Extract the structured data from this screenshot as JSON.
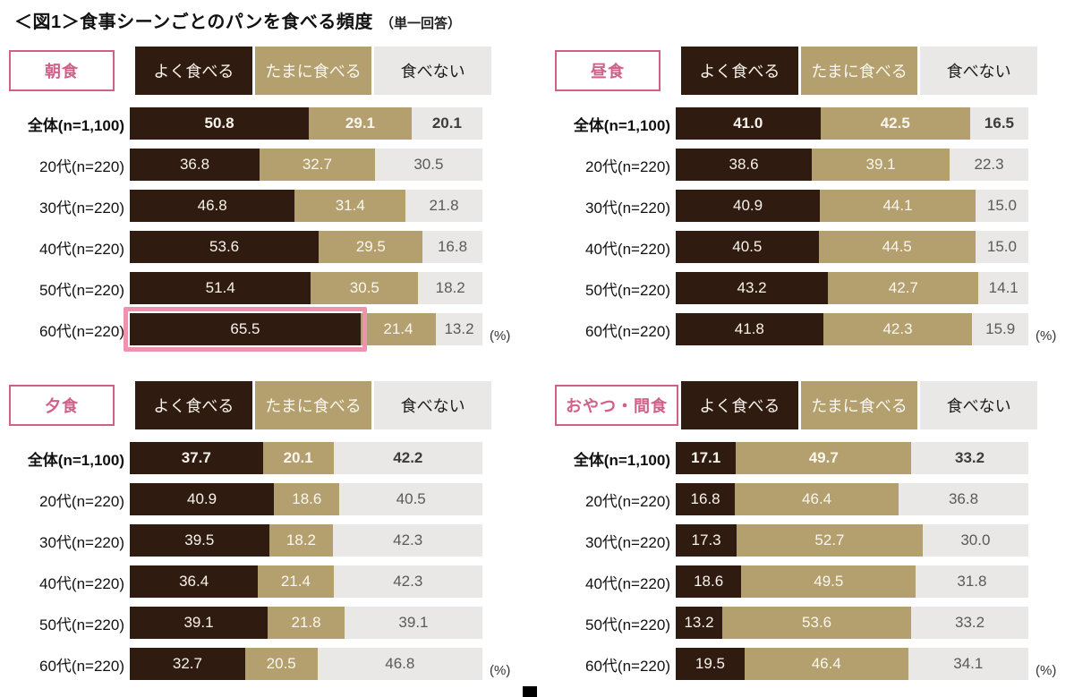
{
  "title": {
    "main": "＜図1＞食事シーンごとのパンを食べる頻度",
    "note": "（単一回答）"
  },
  "legend": [
    "よく食べる",
    "たまに食べる",
    "食べない"
  ],
  "unit_label": "(%)",
  "colors": {
    "often": "#2f1b10",
    "sometimes": "#b3a06e",
    "never": "#e9e8e6",
    "pink": "#cf6189",
    "highlight": "#ee92ae"
  },
  "chart_data": [
    {
      "type": "bar",
      "name": "breakfast",
      "title": "朝食",
      "stacked": true,
      "orientation": "horizontal",
      "unit": "%",
      "xlim": [
        0,
        100
      ],
      "series": [
        "よく食べる",
        "たまに食べる",
        "食べない"
      ],
      "categories": [
        "全体(n=1,100)",
        "20代(n=220)",
        "30代(n=220)",
        "40代(n=220)",
        "50代(n=220)",
        "60代(n=220)"
      ],
      "rows": [
        [
          "50.8",
          "29.1",
          "20.1"
        ],
        [
          "36.8",
          "32.7",
          "30.5"
        ],
        [
          "46.8",
          "31.4",
          "21.8"
        ],
        [
          "53.6",
          "29.5",
          "16.8"
        ],
        [
          "51.4",
          "30.5",
          "18.2"
        ],
        [
          "65.5",
          "21.4",
          "13.2"
        ]
      ],
      "highlight": {
        "row": 5,
        "segment": 0
      }
    },
    {
      "type": "bar",
      "name": "lunch",
      "title": "昼食",
      "stacked": true,
      "orientation": "horizontal",
      "unit": "%",
      "xlim": [
        0,
        100
      ],
      "series": [
        "よく食べる",
        "たまに食べる",
        "食べない"
      ],
      "categories": [
        "全体(n=1,100)",
        "20代(n=220)",
        "30代(n=220)",
        "40代(n=220)",
        "50代(n=220)",
        "60代(n=220)"
      ],
      "rows": [
        [
          "41.0",
          "42.5",
          "16.5"
        ],
        [
          "38.6",
          "39.1",
          "22.3"
        ],
        [
          "40.9",
          "44.1",
          "15.0"
        ],
        [
          "40.5",
          "44.5",
          "15.0"
        ],
        [
          "43.2",
          "42.7",
          "14.1"
        ],
        [
          "41.8",
          "42.3",
          "15.9"
        ]
      ]
    },
    {
      "type": "bar",
      "name": "dinner",
      "title": "夕食",
      "stacked": true,
      "orientation": "horizontal",
      "unit": "%",
      "xlim": [
        0,
        100
      ],
      "series": [
        "よく食べる",
        "たまに食べる",
        "食べない"
      ],
      "categories": [
        "全体(n=1,100)",
        "20代(n=220)",
        "30代(n=220)",
        "40代(n=220)",
        "50代(n=220)",
        "60代(n=220)"
      ],
      "rows": [
        [
          "37.7",
          "20.1",
          "42.2"
        ],
        [
          "40.9",
          "18.6",
          "40.5"
        ],
        [
          "39.5",
          "18.2",
          "42.3"
        ],
        [
          "36.4",
          "21.4",
          "42.3"
        ],
        [
          "39.1",
          "21.8",
          "39.1"
        ],
        [
          "32.7",
          "20.5",
          "46.8"
        ]
      ]
    },
    {
      "type": "bar",
      "name": "snack",
      "title": "おやつ・間食",
      "stacked": true,
      "orientation": "horizontal",
      "unit": "%",
      "xlim": [
        0,
        100
      ],
      "series": [
        "よく食べる",
        "たまに食べる",
        "食べない"
      ],
      "categories": [
        "全体(n=1,100)",
        "20代(n=220)",
        "30代(n=220)",
        "40代(n=220)",
        "50代(n=220)",
        "60代(n=220)"
      ],
      "rows": [
        [
          "17.1",
          "49.7",
          "33.2"
        ],
        [
          "16.8",
          "46.4",
          "36.8"
        ],
        [
          "17.3",
          "52.7",
          "30.0"
        ],
        [
          "18.6",
          "49.5",
          "31.8"
        ],
        [
          "13.2",
          "53.6",
          "33.2"
        ],
        [
          "19.5",
          "46.4",
          "34.1"
        ]
      ]
    }
  ]
}
